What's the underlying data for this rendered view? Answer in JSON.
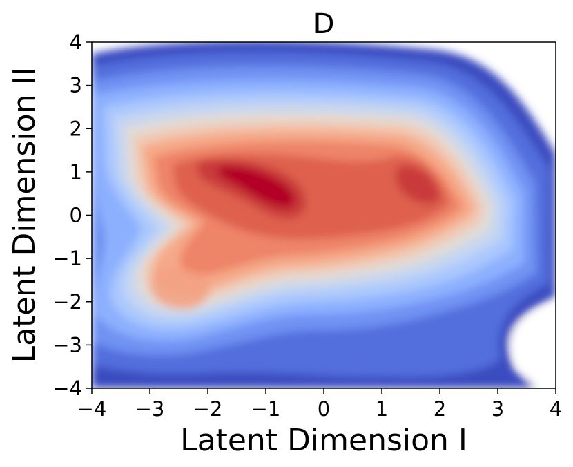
{
  "chart_data": {
    "type": "contour",
    "title": "D",
    "xlabel": "Latent Dimension I",
    "ylabel": "Latent Dimension II",
    "xlim": [
      -4,
      4
    ],
    "ylim": [
      -4,
      4
    ],
    "x_ticks": [
      "−4",
      "−3",
      "−2",
      "−1",
      "0",
      "1",
      "2",
      "3",
      "4"
    ],
    "y_ticks": [
      "−4",
      "−3",
      "−2",
      "−1",
      "0",
      "1",
      "2",
      "3",
      "4"
    ],
    "x_tick_values": [
      -4,
      -3,
      -2,
      -1,
      0,
      1,
      2,
      3,
      4
    ],
    "y_tick_values": [
      -4,
      -3,
      -2,
      -1,
      0,
      1,
      2,
      3,
      4
    ],
    "colormap": "coolwarm",
    "grid": false,
    "density_peaks": [
      {
        "x": -1.0,
        "y": 0.6,
        "level": "highest"
      },
      {
        "x": 1.6,
        "y": 0.8,
        "level": "high"
      },
      {
        "x": -2.2,
        "y": -1.8,
        "level": "medium"
      }
    ]
  }
}
